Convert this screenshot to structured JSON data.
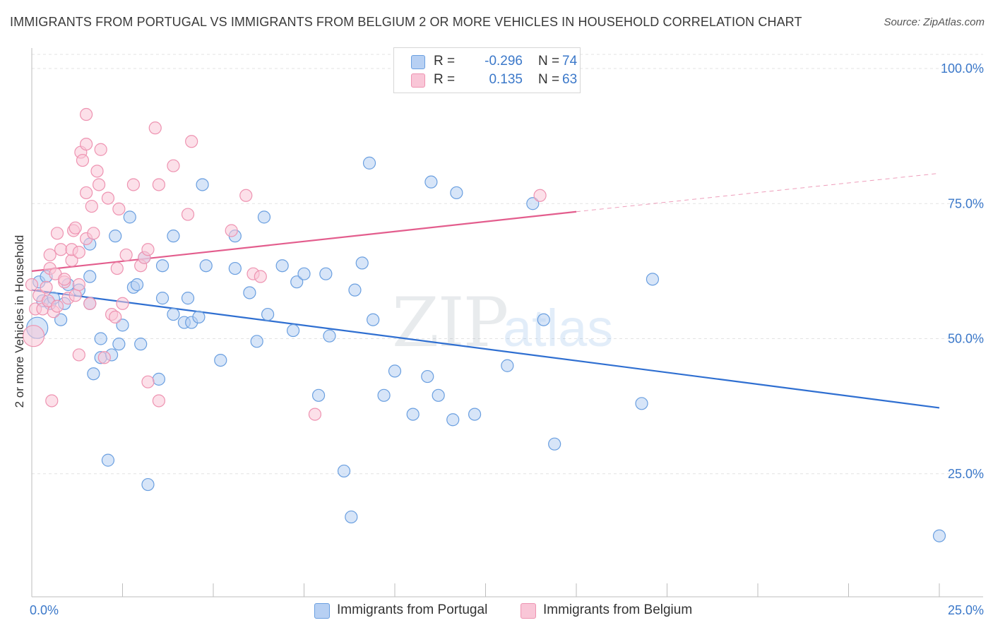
{
  "title": "IMMIGRANTS FROM PORTUGAL VS IMMIGRANTS FROM BELGIUM 2 OR MORE VEHICLES IN HOUSEHOLD CORRELATION CHART",
  "source": "Source: ZipAtlas.com",
  "watermark": {
    "zip": "ZIP",
    "atlas": "atlas"
  },
  "legend": {
    "portugal": {
      "r_label": "R =",
      "r_value": "-0.296",
      "n_label": "N =",
      "n_value": "74"
    },
    "belgium": {
      "r_label": "R =",
      "r_value": "0.135",
      "n_label": "N =",
      "n_value": "63"
    }
  },
  "chart_data": {
    "type": "scatter",
    "xlabel": "",
    "ylabel": "2 or more Vehicles in Household",
    "xlim": [
      0,
      25
    ],
    "ylim": [
      0,
      105
    ],
    "x_tick_labels": [
      "0.0%",
      "25.0%"
    ],
    "y_ticks": [
      25,
      50,
      75,
      100
    ],
    "y_tick_labels": [
      "25.0%",
      "50.0%",
      "75.0%",
      "100.0%"
    ],
    "grid": true,
    "legend_placement": "bottom",
    "series": [
      {
        "name": "Immigrants from Portugal",
        "color": "#6a9fe0",
        "fill": "#b7d0f3",
        "trend": {
          "x0": 0,
          "y0": 59.0,
          "x1": 25,
          "y1": 37.2,
          "dashed_to": null,
          "line_color": "#2f6fd1"
        },
        "points": [
          [
            0.15,
            52.0
          ],
          [
            0.2,
            60.5
          ],
          [
            0.3,
            57.0
          ],
          [
            0.4,
            61.5
          ],
          [
            0.5,
            56.5
          ],
          [
            0.6,
            57.5
          ],
          [
            0.8,
            53.5
          ],
          [
            0.9,
            56.5
          ],
          [
            1.0,
            60.0
          ],
          [
            1.3,
            59.0
          ],
          [
            1.6,
            56.5
          ],
          [
            1.6,
            67.5
          ],
          [
            1.6,
            61.5
          ],
          [
            1.7,
            43.5
          ],
          [
            1.9,
            50.0
          ],
          [
            1.9,
            46.5
          ],
          [
            2.1,
            27.5
          ],
          [
            2.2,
            47.0
          ],
          [
            2.3,
            69.0
          ],
          [
            2.4,
            49.0
          ],
          [
            2.5,
            52.5
          ],
          [
            2.7,
            72.5
          ],
          [
            2.8,
            59.5
          ],
          [
            2.9,
            60.0
          ],
          [
            3.0,
            49.0
          ],
          [
            3.1,
            65.0
          ],
          [
            3.2,
            23.0
          ],
          [
            3.5,
            42.5
          ],
          [
            3.6,
            57.5
          ],
          [
            3.6,
            63.5
          ],
          [
            3.9,
            54.5
          ],
          [
            3.9,
            69.0
          ],
          [
            4.2,
            53.0
          ],
          [
            4.3,
            57.5
          ],
          [
            4.4,
            53.0
          ],
          [
            4.6,
            54.0
          ],
          [
            4.7,
            78.5
          ],
          [
            4.8,
            63.5
          ],
          [
            5.2,
            46.0
          ],
          [
            5.6,
            69.0
          ],
          [
            5.6,
            63.0
          ],
          [
            6.0,
            58.5
          ],
          [
            6.2,
            49.5
          ],
          [
            6.4,
            72.5
          ],
          [
            6.5,
            54.5
          ],
          [
            6.9,
            63.5
          ],
          [
            7.2,
            51.5
          ],
          [
            7.3,
            60.5
          ],
          [
            7.5,
            62.0
          ],
          [
            7.9,
            39.5
          ],
          [
            8.1,
            62.0
          ],
          [
            8.2,
            50.5
          ],
          [
            8.6,
            25.5
          ],
          [
            8.8,
            17.0
          ],
          [
            8.9,
            59.0
          ],
          [
            9.1,
            64.0
          ],
          [
            9.3,
            82.5
          ],
          [
            9.4,
            53.5
          ],
          [
            9.7,
            39.5
          ],
          [
            10.0,
            44.0
          ],
          [
            10.5,
            36.0
          ],
          [
            10.9,
            43.0
          ],
          [
            11.0,
            79.0
          ],
          [
            11.2,
            39.5
          ],
          [
            11.6,
            35.0
          ],
          [
            11.7,
            77.0
          ],
          [
            12.2,
            36.0
          ],
          [
            13.1,
            45.0
          ],
          [
            13.8,
            75.0
          ],
          [
            14.1,
            53.5
          ],
          [
            14.4,
            30.5
          ],
          [
            16.8,
            38.0
          ],
          [
            17.1,
            61.0
          ],
          [
            25.0,
            13.5
          ]
        ]
      },
      {
        "name": "Immigrants from Belgium",
        "color": "#ee93b1",
        "fill": "#f9c6d7",
        "trend": {
          "x0": 0,
          "y0": 62.5,
          "x1": 15,
          "y1": 73.5,
          "dash_x1": 25,
          "dash_y1": 80.6,
          "line_color": "#e35d8d"
        },
        "points": [
          [
            0.05,
            50.5
          ],
          [
            0.1,
            55.5
          ],
          [
            0.2,
            58.0
          ],
          [
            0.3,
            55.5
          ],
          [
            0.4,
            59.5
          ],
          [
            0.45,
            57.0
          ],
          [
            0.5,
            63.0
          ],
          [
            0.5,
            65.5
          ],
          [
            0.55,
            38.5
          ],
          [
            0.6,
            55.0
          ],
          [
            0.65,
            62.0
          ],
          [
            0.7,
            56.0
          ],
          [
            0.7,
            69.5
          ],
          [
            0.8,
            66.5
          ],
          [
            0.9,
            60.5
          ],
          [
            0.9,
            61.0
          ],
          [
            1.0,
            57.5
          ],
          [
            1.1,
            64.5
          ],
          [
            1.1,
            66.5
          ],
          [
            1.15,
            70.0
          ],
          [
            1.2,
            70.5
          ],
          [
            1.2,
            58.0
          ],
          [
            1.3,
            66.0
          ],
          [
            1.3,
            60.0
          ],
          [
            1.3,
            47.0
          ],
          [
            1.35,
            84.5
          ],
          [
            1.4,
            83.0
          ],
          [
            1.5,
            91.5
          ],
          [
            1.5,
            86.0
          ],
          [
            1.5,
            77.0
          ],
          [
            1.5,
            68.5
          ],
          [
            1.6,
            56.5
          ],
          [
            1.65,
            74.5
          ],
          [
            1.7,
            69.5
          ],
          [
            1.8,
            81.0
          ],
          [
            1.85,
            78.5
          ],
          [
            1.9,
            85.0
          ],
          [
            2.0,
            46.5
          ],
          [
            2.1,
            76.0
          ],
          [
            2.2,
            54.5
          ],
          [
            2.3,
            54.0
          ],
          [
            2.35,
            63.0
          ],
          [
            2.4,
            74.0
          ],
          [
            2.5,
            56.5
          ],
          [
            2.6,
            65.5
          ],
          [
            2.8,
            78.5
          ],
          [
            3.0,
            63.5
          ],
          [
            3.1,
            65.0
          ],
          [
            3.2,
            42.0
          ],
          [
            3.2,
            66.5
          ],
          [
            3.4,
            89.0
          ],
          [
            3.5,
            78.5
          ],
          [
            3.5,
            38.5
          ],
          [
            3.9,
            82.0
          ],
          [
            4.3,
            73.0
          ],
          [
            4.4,
            86.5
          ],
          [
            5.5,
            70.0
          ],
          [
            5.9,
            76.5
          ],
          [
            6.1,
            62.0
          ],
          [
            6.3,
            61.5
          ],
          [
            7.8,
            36.0
          ],
          [
            14.0,
            76.5
          ],
          [
            0.0,
            60.0
          ]
        ]
      }
    ]
  }
}
